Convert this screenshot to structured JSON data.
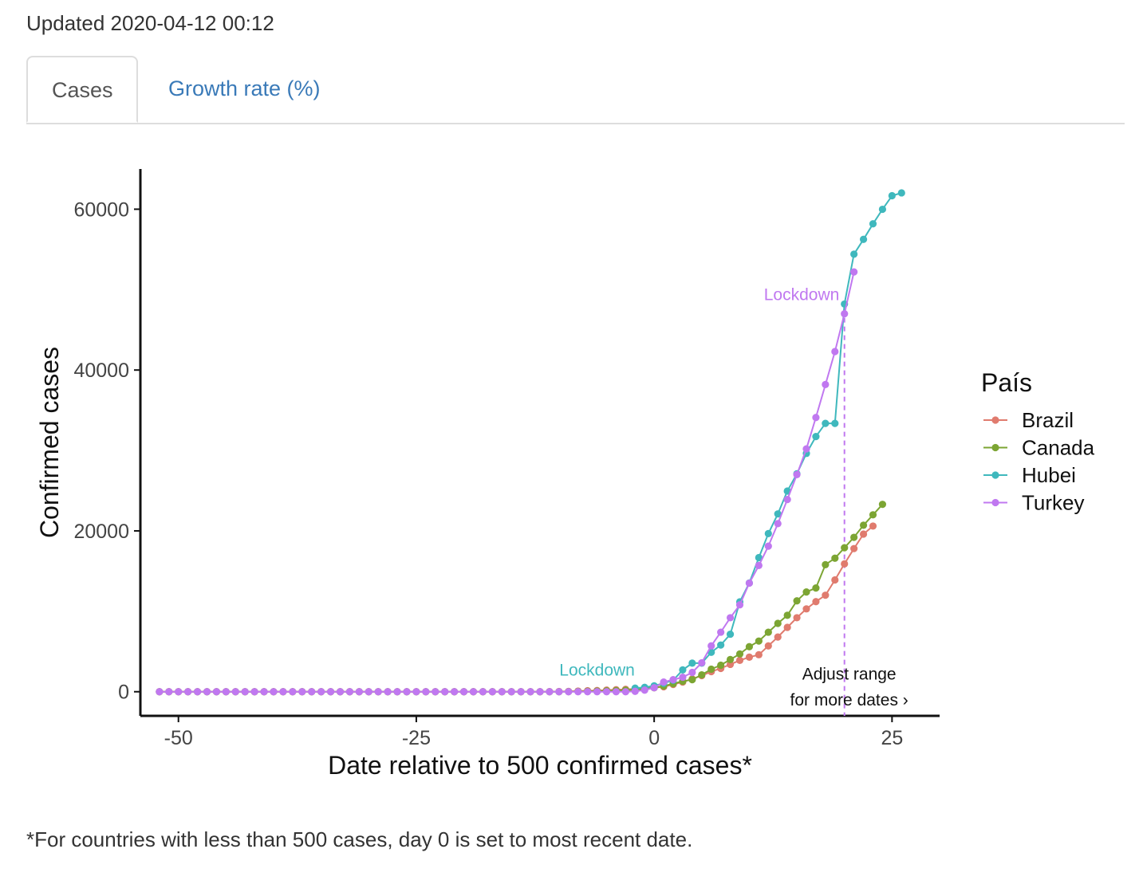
{
  "header": {
    "updated_text": "Updated 2020-04-12 00:12"
  },
  "tabs": [
    {
      "label": "Cases",
      "active": true
    },
    {
      "label": "Growth rate (%)",
      "active": false
    }
  ],
  "footnote": "*For countries with less than 500 cases, day 0 is set to most recent date.",
  "chart_data": {
    "type": "line",
    "xlabel": "Date relative to 500 confirmed cases*",
    "ylabel": "Confirmed cases",
    "xlim": [
      -54,
      30
    ],
    "ylim": [
      -3000,
      65000
    ],
    "xticks": [
      -50,
      -25,
      0,
      25
    ],
    "yticks": [
      0,
      20000,
      40000,
      60000
    ],
    "grid": false,
    "legend": {
      "title": "País",
      "position": "right"
    },
    "series": [
      {
        "name": "Brazil",
        "color": "#e07b6e",
        "x": [
          -52,
          -51,
          -50,
          -49,
          -48,
          -47,
          -46,
          -45,
          -44,
          -43,
          -42,
          -41,
          -40,
          -39,
          -38,
          -37,
          -36,
          -35,
          -34,
          -33,
          -32,
          -31,
          -30,
          -29,
          -28,
          -27,
          -26,
          -25,
          -24,
          -23,
          -22,
          -21,
          -20,
          -19,
          -18,
          -17,
          -16,
          -15,
          -14,
          -13,
          -12,
          -11,
          -10,
          -9,
          -8,
          -7,
          -6,
          -5,
          -4,
          -3,
          -2,
          -1,
          0,
          1,
          2,
          3,
          4,
          5,
          6,
          7,
          8,
          9,
          10,
          11,
          12,
          13,
          14,
          15,
          16,
          17,
          18,
          19,
          20,
          21,
          22,
          23
        ],
        "y": [
          0,
          0,
          0,
          0,
          0,
          0,
          0,
          0,
          0,
          0,
          0,
          0,
          0,
          0,
          0,
          0,
          0,
          0,
          0,
          0,
          0,
          0,
          0,
          0,
          0,
          0,
          0,
          0,
          0,
          0,
          0,
          0,
          0,
          0,
          0,
          0,
          0,
          0,
          0,
          0,
          0,
          10,
          20,
          40,
          80,
          120,
          150,
          200,
          250,
          300,
          350,
          420,
          500,
          620,
          900,
          1200,
          1600,
          2000,
          2500,
          2900,
          3400,
          3900,
          4300,
          4600,
          5700,
          6800,
          8000,
          9200,
          10300,
          11200,
          12000,
          13900,
          15900,
          17800,
          19600,
          20600
        ]
      },
      {
        "name": "Canada",
        "color": "#7ca533",
        "x": [
          -52,
          -51,
          -50,
          -49,
          -48,
          -47,
          -46,
          -45,
          -44,
          -43,
          -42,
          -41,
          -40,
          -39,
          -38,
          -37,
          -36,
          -35,
          -34,
          -33,
          -32,
          -31,
          -30,
          -29,
          -28,
          -27,
          -26,
          -25,
          -24,
          -23,
          -22,
          -21,
          -20,
          -19,
          -18,
          -17,
          -16,
          -15,
          -14,
          -13,
          -12,
          -11,
          -10,
          -9,
          -8,
          -7,
          -6,
          -5,
          -4,
          -3,
          -2,
          -1,
          0,
          1,
          2,
          3,
          4,
          5,
          6,
          7,
          8,
          9,
          10,
          11,
          12,
          13,
          14,
          15,
          16,
          17,
          18,
          19,
          20,
          21,
          22,
          23,
          24
        ],
        "y": [
          0,
          0,
          0,
          0,
          0,
          0,
          0,
          0,
          0,
          0,
          0,
          0,
          0,
          0,
          0,
          0,
          0,
          0,
          0,
          0,
          0,
          0,
          0,
          0,
          0,
          0,
          0,
          0,
          0,
          0,
          0,
          0,
          0,
          0,
          0,
          0,
          0,
          0,
          0,
          0,
          0,
          0,
          0,
          10,
          30,
          50,
          80,
          110,
          150,
          200,
          260,
          350,
          500,
          700,
          1000,
          1300,
          1500,
          2100,
          2800,
          3300,
          4000,
          4700,
          5600,
          6300,
          7400,
          8500,
          9500,
          11300,
          12400,
          12900,
          15800,
          16600,
          17900,
          19200,
          20700,
          22000,
          23300
        ]
      },
      {
        "name": "Hubei",
        "color": "#3fb8bd",
        "x": [
          -2,
          -1,
          0,
          1,
          2,
          3,
          4,
          5,
          6,
          7,
          8,
          9,
          10,
          11,
          12,
          13,
          14,
          15,
          16,
          17,
          18,
          19,
          20,
          21,
          22,
          23,
          24,
          25,
          26
        ],
        "y": [
          444,
          549,
          729,
          1052,
          1423,
          2714,
          3554,
          3554,
          4903,
          5806,
          7153,
          11177,
          13522,
          16678,
          19665,
          22112,
          24953,
          27100,
          29631,
          31728,
          33366,
          33366,
          48206,
          54406,
          56249,
          58182,
          59989,
          61682,
          62031
        ]
      },
      {
        "name": "Turkey",
        "color": "#c078f0",
        "x": [
          -52,
          -51,
          -50,
          -49,
          -48,
          -47,
          -46,
          -45,
          -44,
          -43,
          -42,
          -41,
          -40,
          -39,
          -38,
          -37,
          -36,
          -35,
          -34,
          -33,
          -32,
          -31,
          -30,
          -29,
          -28,
          -27,
          -26,
          -25,
          -24,
          -23,
          -22,
          -21,
          -20,
          -19,
          -18,
          -17,
          -16,
          -15,
          -14,
          -13,
          -12,
          -11,
          -10,
          -9,
          -8,
          -7,
          -6,
          -5,
          -4,
          -3,
          -2,
          -1,
          0,
          1,
          2,
          3,
          4,
          5,
          6,
          7,
          8,
          9,
          10,
          11,
          12,
          13,
          14,
          15,
          16,
          17,
          18,
          19,
          20,
          21
        ],
        "y": [
          0,
          0,
          0,
          0,
          0,
          0,
          0,
          0,
          0,
          0,
          0,
          0,
          0,
          0,
          0,
          0,
          0,
          0,
          0,
          0,
          0,
          0,
          0,
          0,
          0,
          0,
          0,
          0,
          0,
          0,
          0,
          0,
          0,
          0,
          0,
          0,
          0,
          0,
          0,
          0,
          0,
          0,
          0,
          0,
          0,
          0,
          0,
          0,
          0,
          0,
          50,
          200,
          500,
          1200,
          1500,
          1800,
          2400,
          3600,
          5700,
          7400,
          9200,
          10800,
          13500,
          15700,
          18100,
          20900,
          23900,
          27000,
          30200,
          34100,
          38200,
          42300,
          47000,
          52200
        ]
      }
    ],
    "annotations": [
      {
        "text": "Lockdown",
        "x": -6,
        "y": 2000,
        "color": "#3fb8bd"
      },
      {
        "text": "Lockdown",
        "x": 15.5,
        "y": 48700,
        "color": "#c078f0"
      },
      {
        "type": "vline",
        "x": 20,
        "color": "#c078f0"
      },
      {
        "text": "Adjust range",
        "x": 20.5,
        "y": 1500,
        "color": "#111111"
      },
      {
        "text": "for more dates ›",
        "x": 20.5,
        "y": -1700,
        "color": "#111111"
      }
    ]
  }
}
